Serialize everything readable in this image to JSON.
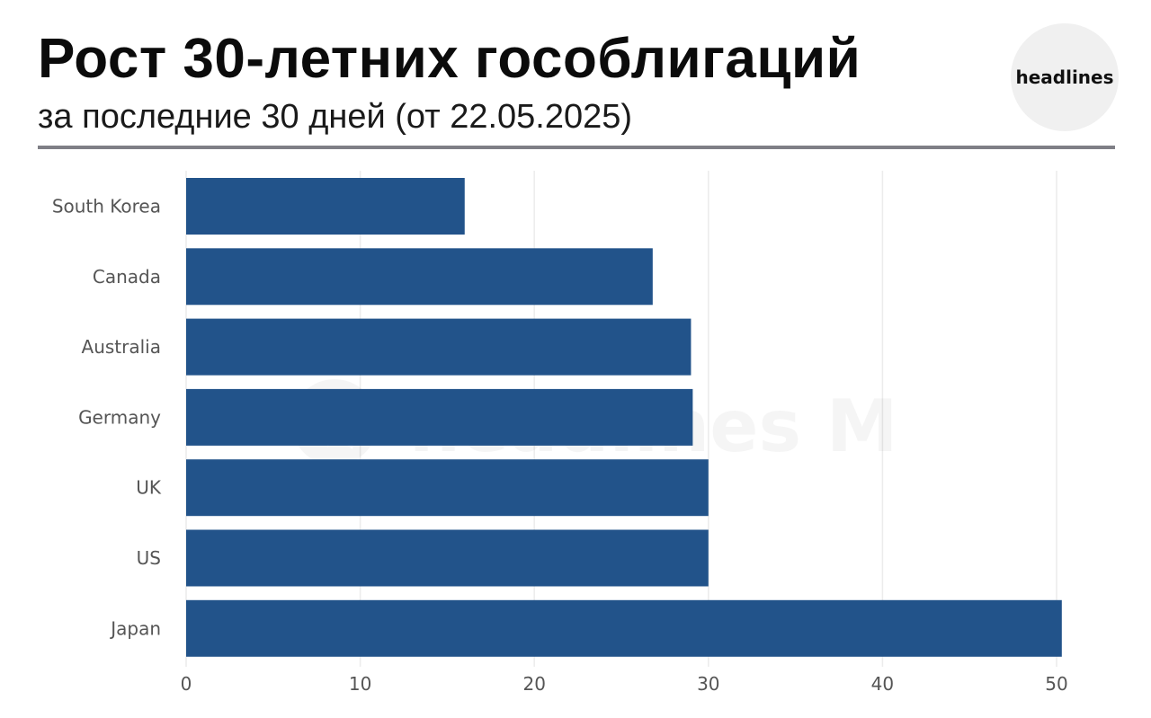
{
  "header": {
    "title": "Рост 30-летних гособлигаций",
    "subtitle": "за последние 30 дней (от 22.05.2025)",
    "logo_text": "headlines"
  },
  "watermark": {
    "text": "headlines M",
    "icon": "telegram-icon"
  },
  "colors": {
    "bar": "#22538a",
    "grid": "#ececec",
    "label": "#555555",
    "divider": "#7f7f86",
    "logo_bg": "#f0f0f0"
  },
  "chart_data": {
    "type": "bar",
    "orientation": "horizontal",
    "title": "Рост 30-летних гособлигаций",
    "subtitle": "за последние 30 дней (от 22.05.2025)",
    "xlabel": "",
    "ylabel": "",
    "categories": [
      "South Korea",
      "Canada",
      "Australia",
      "Germany",
      "UK",
      "US",
      "Japan"
    ],
    "values": [
      16,
      26.8,
      29,
      29.1,
      30,
      30,
      50.3
    ],
    "xlim": [
      0,
      50
    ],
    "xticks": [
      0,
      10,
      20,
      30,
      40,
      50
    ],
    "grid": true,
    "legend": "none"
  }
}
